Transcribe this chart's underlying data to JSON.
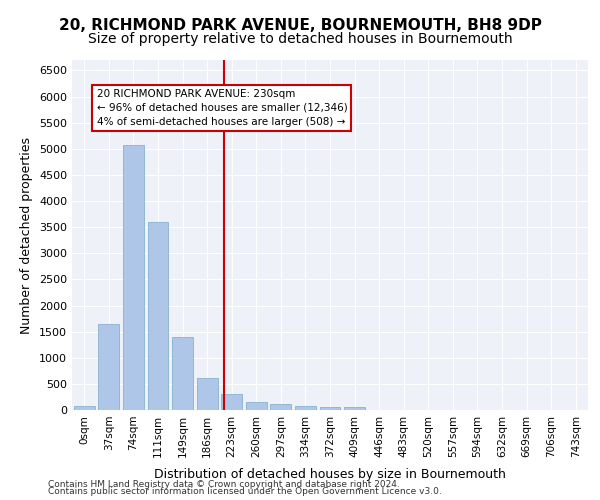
{
  "title1": "20, RICHMOND PARK AVENUE, BOURNEMOUTH, BH8 9DP",
  "title2": "Size of property relative to detached houses in Bournemouth",
  "xlabel": "Distribution of detached houses by size in Bournemouth",
  "ylabel": "Number of detached properties",
  "footer1": "Contains HM Land Registry data © Crown copyright and database right 2024.",
  "footer2": "Contains public sector information licensed under the Open Government Licence v3.0.",
  "categories": [
    "0sqm",
    "37sqm",
    "74sqm",
    "111sqm",
    "149sqm",
    "186sqm",
    "223sqm",
    "260sqm",
    "297sqm",
    "334sqm",
    "372sqm",
    "409sqm",
    "446sqm",
    "483sqm",
    "520sqm",
    "557sqm",
    "594sqm",
    "632sqm",
    "669sqm",
    "706sqm",
    "743sqm"
  ],
  "values": [
    70,
    1640,
    5080,
    3600,
    1400,
    620,
    300,
    150,
    110,
    70,
    50,
    55,
    0,
    0,
    0,
    0,
    0,
    0,
    0,
    0,
    0
  ],
  "bar_color": "#aec6e8",
  "bar_edge_color": "#7aaac8",
  "vline_x": 6,
  "vline_color": "#cc0000",
  "annotation_box": {
    "text_line1": "20 RICHMOND PARK AVENUE: 230sqm",
    "text_line2": "← 96% of detached houses are smaller (12,346)",
    "text_line3": "4% of semi-detached houses are larger (508) →",
    "box_color": "white",
    "edge_color": "#cc0000"
  },
  "ylim": [
    0,
    6700
  ],
  "yticks": [
    0,
    500,
    1000,
    1500,
    2000,
    2500,
    3000,
    3500,
    4000,
    4500,
    5000,
    5500,
    6000,
    6500
  ],
  "background_color": "#eef2f8",
  "plot_bg_color": "#eef2f8",
  "grid_color": "white",
  "title1_fontsize": 11,
  "title2_fontsize": 10,
  "xlabel_fontsize": 9,
  "ylabel_fontsize": 9
}
